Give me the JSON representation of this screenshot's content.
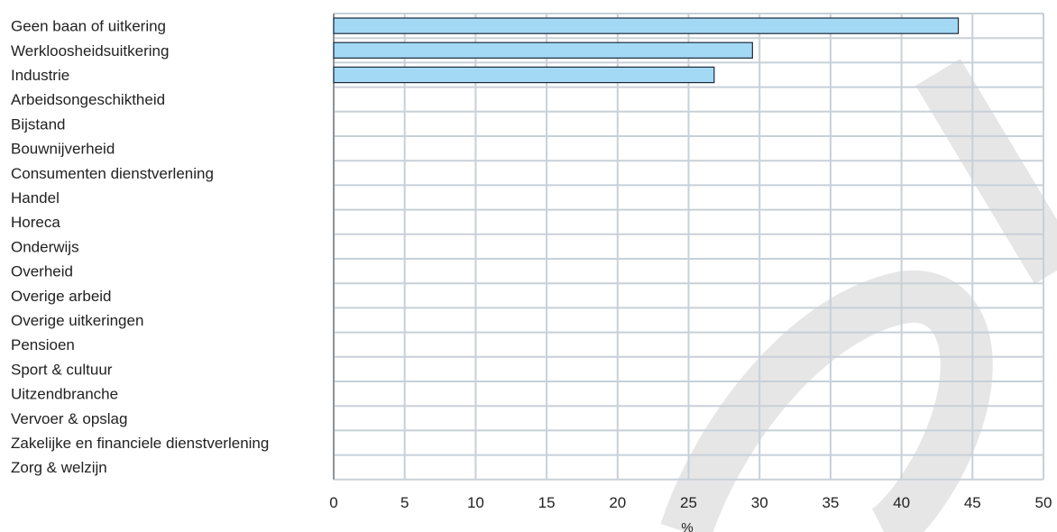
{
  "chart_data": {
    "type": "bar",
    "orientation": "horizontal",
    "categories": [
      "Geen baan of uitkering",
      "Werkloosheidsuitkering",
      "Industrie",
      "Arbeidsongeschiktheid",
      "Bijstand",
      "Bouwnijverheid",
      "Consumenten dienstverlening",
      "Handel",
      "Horeca",
      "Onderwijs",
      "Overheid",
      "Overige arbeid",
      "Overige uitkeringen",
      "Pensioen",
      "Sport & cultuur",
      "Uitzendbranche",
      "Vervoer & opslag",
      "Zakelijke en financiele dienstverlening",
      "Zorg & welzijn"
    ],
    "values": [
      44,
      29.5,
      26.8,
      null,
      null,
      null,
      null,
      null,
      null,
      null,
      null,
      null,
      null,
      null,
      null,
      null,
      null,
      null,
      null
    ],
    "xlabel": "%",
    "xlim": [
      0,
      50
    ],
    "xticks": [
      0,
      5,
      10,
      15,
      20,
      25,
      30,
      35,
      40,
      45,
      50
    ],
    "grid": true,
    "colors": {
      "bar_fill": "#a3d9f5",
      "bar_stroke": "#1a2a3a",
      "grid": "#c8d0d8",
      "watermark": "#e6e6e6"
    }
  }
}
